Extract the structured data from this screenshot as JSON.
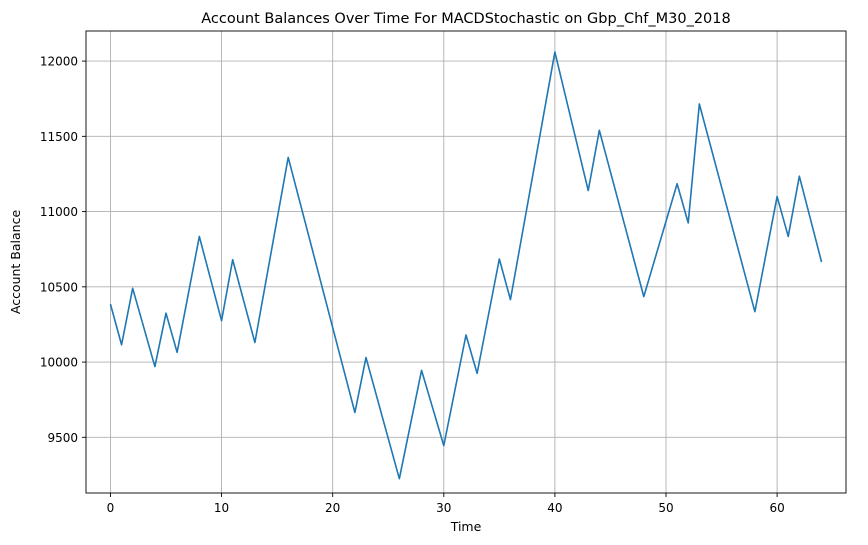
{
  "chart_data": {
    "type": "line",
    "title": "Account Balances Over Time For MACDStochastic on Gbp_Chf_M30_2018",
    "xlabel": "Time",
    "ylabel": "Account Balance",
    "xlim": [
      -2.2,
      66.2
    ],
    "ylim": [
      9130,
      12200
    ],
    "xticks": [
      0,
      10,
      20,
      30,
      40,
      50,
      60
    ],
    "yticks": [
      9500,
      10000,
      10500,
      11000,
      11500,
      12000
    ],
    "grid": true,
    "line_color": "#1f77b4",
    "series": [
      {
        "x": [
          0,
          1,
          2,
          4,
          5,
          6,
          8,
          10,
          11,
          13,
          16,
          22,
          23,
          26,
          28,
          30,
          32,
          33,
          35,
          36,
          40,
          43,
          44,
          48,
          51,
          52,
          53,
          58,
          60,
          61,
          62,
          64
        ],
        "y": [
          10385,
          10115,
          10490,
          9970,
          10325,
          10065,
          10835,
          10275,
          10680,
          10130,
          11360,
          9665,
          10030,
          9225,
          9945,
          9445,
          10180,
          9925,
          10685,
          10415,
          12060,
          11140,
          11540,
          10435,
          11185,
          10925,
          11715,
          10335,
          11100,
          10835,
          11235,
          10665
        ]
      }
    ]
  }
}
